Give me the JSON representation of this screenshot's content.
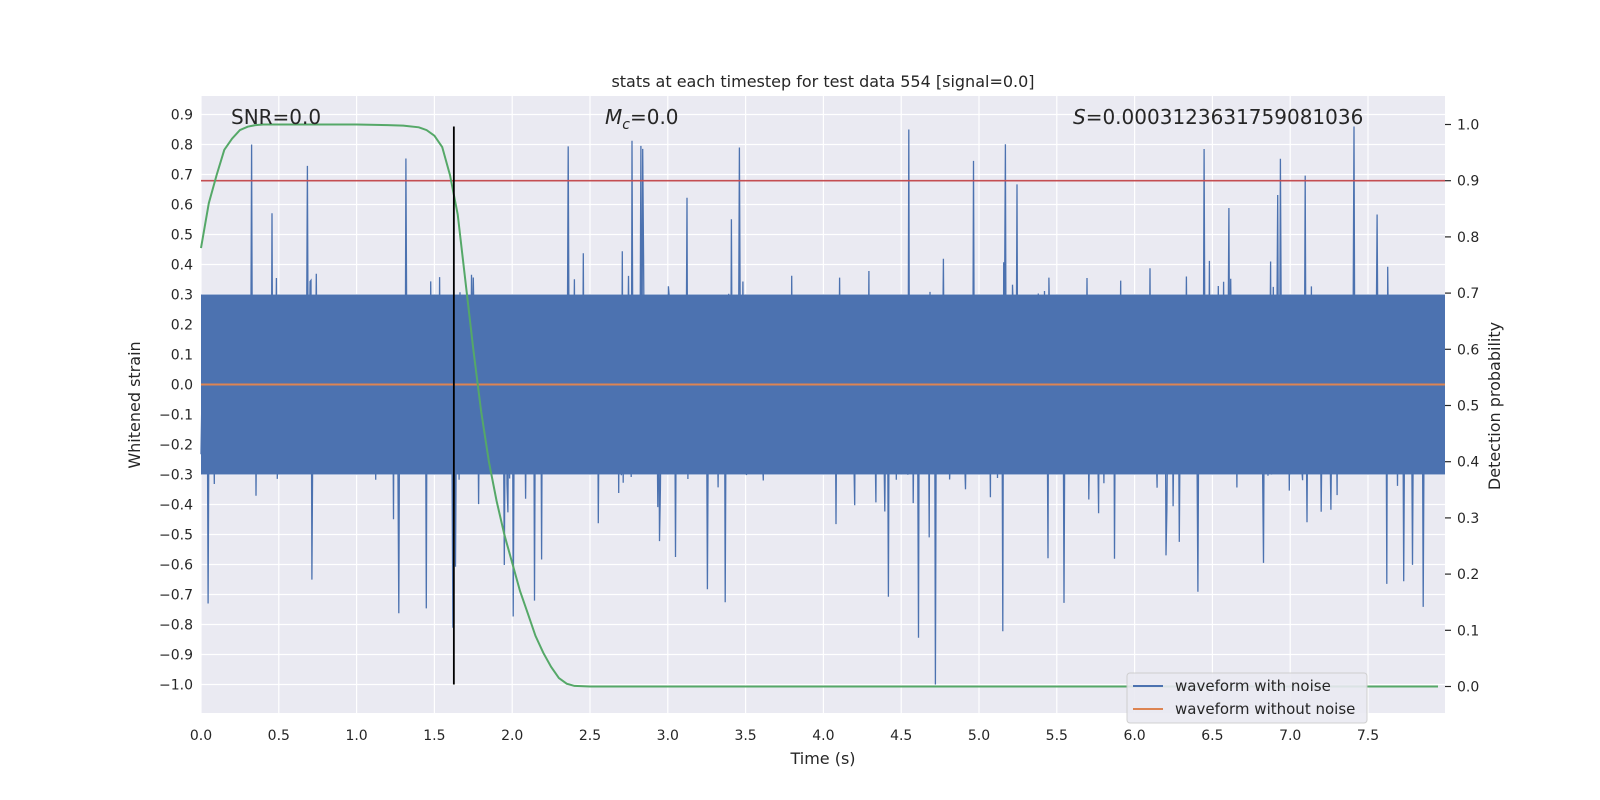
{
  "chart_data": {
    "type": "line",
    "title": "stats at each timestep for test data 554 [signal=0.0]",
    "xlabel": "Time (s)",
    "ylabel": "Whitened strain",
    "ylabel_right": "Detection probability",
    "xlim": [
      0.0,
      8.0
    ],
    "ylim": [
      -1.09,
      0.95
    ],
    "ylim_right": [
      -0.047,
      1.045
    ],
    "xticks": [
      "0.0",
      "0.5",
      "1.0",
      "1.5",
      "2.0",
      "2.5",
      "3.0",
      "3.5",
      "4.0",
      "4.5",
      "5.0",
      "5.5",
      "6.0",
      "6.5",
      "7.0",
      "7.5"
    ],
    "yticks": [
      "0.9",
      "0.8",
      "0.7",
      "0.6",
      "0.5",
      "0.4",
      "0.3",
      "0.2",
      "0.1",
      "0.0",
      "−0.1",
      "−0.2",
      "−0.3",
      "−0.4",
      "−0.5",
      "−0.6",
      "−0.7",
      "−0.8",
      "−0.9",
      "−1.0"
    ],
    "yticks_right": [
      "1.0",
      "0.9",
      "0.8",
      "0.7",
      "0.6",
      "0.5",
      "0.4",
      "0.3",
      "0.2",
      "0.1",
      "0.0"
    ],
    "annotations": {
      "snr": "SNR=0.0",
      "mc_symbol": "M",
      "mc_subscript": "c",
      "mc_value": "=0.0",
      "s_symbol": "S",
      "s_value": "=0.0003123631759081036"
    },
    "threshold": 0.9,
    "detection_time": 1.625,
    "detection_line_yrange": [
      -1.0,
      0.86
    ],
    "grid": true,
    "legend_position": "lower-right",
    "series": [
      {
        "name": "waveform with noise",
        "color": "#4c72b0",
        "noise_std": 0.2,
        "spike_max": 0.86,
        "spike_min": -1.0
      },
      {
        "name": "waveform without noise",
        "color": "#dd8452",
        "constant": 0.0
      },
      {
        "color": "#55a868",
        "x": [
          0.0,
          0.05,
          0.1,
          0.15,
          0.2,
          0.25,
          0.3,
          0.35,
          0.4,
          0.5,
          0.7,
          1.0,
          1.2,
          1.3,
          1.4,
          1.45,
          1.5,
          1.55,
          1.6,
          1.65,
          1.7,
          1.75,
          1.8,
          1.85,
          1.9,
          1.95,
          2.0,
          2.05,
          2.1,
          2.15,
          2.2,
          2.25,
          2.3,
          2.35,
          2.4,
          2.5,
          3.0,
          4.0,
          5.0,
          6.0,
          7.0,
          7.95
        ],
        "values": [
          0.78,
          0.86,
          0.91,
          0.955,
          0.975,
          0.99,
          0.996,
          0.999,
          1.0,
          1.0,
          1.0,
          1.0,
          0.999,
          0.998,
          0.995,
          0.99,
          0.98,
          0.96,
          0.91,
          0.84,
          0.72,
          0.6,
          0.49,
          0.4,
          0.33,
          0.27,
          0.22,
          0.17,
          0.13,
          0.09,
          0.06,
          0.035,
          0.015,
          0.005,
          0.001,
          0.0,
          0.0,
          0.0,
          0.0,
          0.0,
          0.0,
          0.0
        ]
      },
      {
        "color": "#c44e52",
        "constant": 0.9
      }
    ]
  }
}
